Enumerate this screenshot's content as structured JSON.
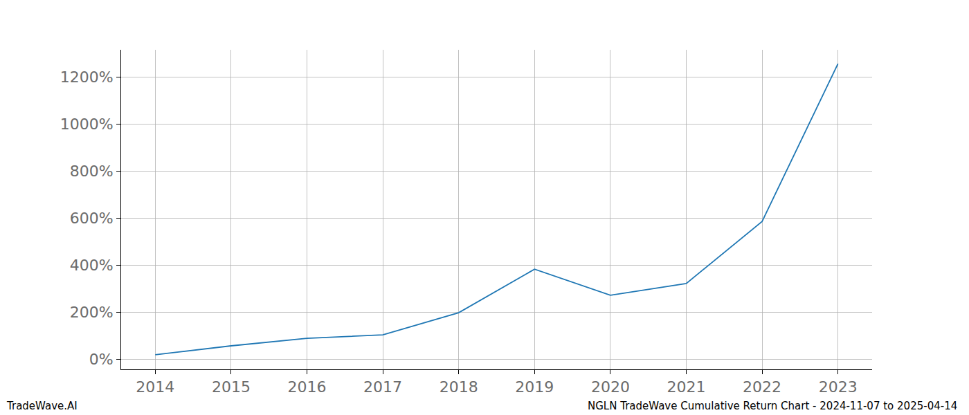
{
  "chart_data": {
    "type": "line",
    "x": [
      2014,
      2015,
      2016,
      2017,
      2018,
      2019,
      2020,
      2021,
      2022,
      2023
    ],
    "values": [
      18,
      56,
      88,
      103,
      197,
      382,
      271,
      321,
      585,
      1256
    ],
    "color": "#1f77b4",
    "xlim": [
      2013.55,
      2023.45
    ],
    "xticks": [
      2014,
      2015,
      2016,
      2017,
      2018,
      2019,
      2020,
      2021,
      2022,
      2023
    ],
    "ylim": [
      -44,
      1315
    ],
    "yticks": [
      {
        "value": 0,
        "label": "0%"
      },
      {
        "value": 200,
        "label": "200%"
      },
      {
        "value": 400,
        "label": "400%"
      },
      {
        "value": 600,
        "label": "600%"
      },
      {
        "value": 800,
        "label": "800%"
      },
      {
        "value": 1000,
        "label": "1000%"
      },
      {
        "value": 1200,
        "label": "1200%"
      }
    ],
    "grid": true,
    "annotations": [
      "TradeWave.AI",
      "NGLN TradeWave Cumulative Return Chart - 2024-11-07 to 2025-04-14"
    ]
  }
}
